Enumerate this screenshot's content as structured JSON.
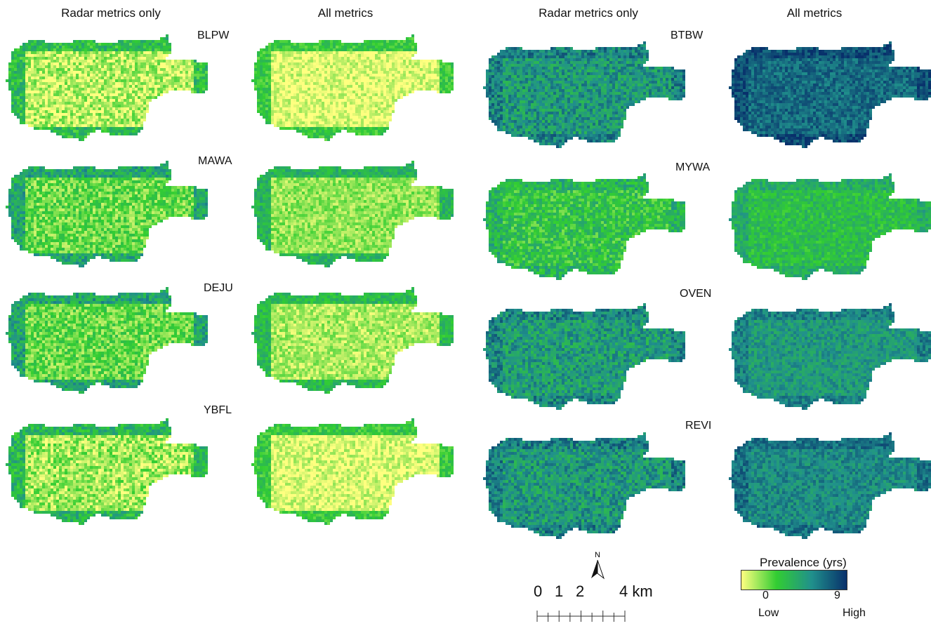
{
  "column_headers": [
    "Radar metrics only",
    "All metrics",
    "Radar metrics only",
    "All metrics"
  ],
  "left_species": [
    {
      "code": "BLPW",
      "radar_only_prevalence": 0.12,
      "all_metrics_prevalence": 0.05
    },
    {
      "code": "MAWA",
      "radar_only_prevalence": 0.25,
      "all_metrics_prevalence": 0.18
    },
    {
      "code": "DEJU",
      "radar_only_prevalence": 0.26,
      "all_metrics_prevalence": 0.14
    },
    {
      "code": "YBFL",
      "radar_only_prevalence": 0.16,
      "all_metrics_prevalence": 0.06
    }
  ],
  "right_species": [
    {
      "code": "BTBW",
      "radar_only_prevalence": 0.62,
      "all_metrics_prevalence": 0.8
    },
    {
      "code": "MYWA",
      "radar_only_prevalence": 0.38,
      "all_metrics_prevalence": 0.42
    },
    {
      "code": "OVEN",
      "radar_only_prevalence": 0.6,
      "all_metrics_prevalence": 0.62
    },
    {
      "code": "REVI",
      "radar_only_prevalence": 0.62,
      "all_metrics_prevalence": 0.68
    }
  ],
  "scale_bar": {
    "ticks": [
      "0",
      "1",
      "2",
      "4 km"
    ]
  },
  "north_arrow": {
    "label": "N"
  },
  "legend": {
    "title": "Prevalence (yrs)",
    "min_value": "0",
    "max_value": "9",
    "low_label": "Low",
    "high_label": "High",
    "colors": [
      "#ffff80",
      "#32cd32",
      "#20908c",
      "#08306b"
    ]
  }
}
